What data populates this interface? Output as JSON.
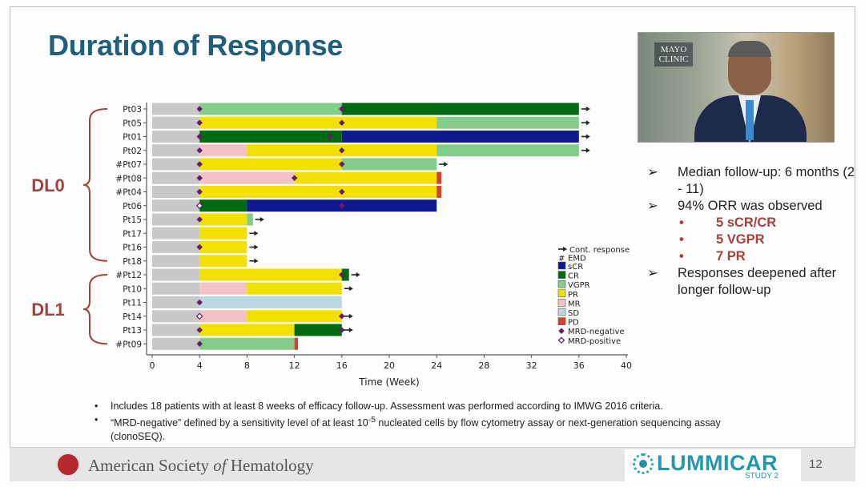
{
  "slide": {
    "title": "Duration of Response",
    "page_number": "12"
  },
  "webcam": {
    "logo_text": "MAYO CLINIC"
  },
  "summary": {
    "bullets": [
      {
        "marker": "➢",
        "text": "Median follow-up: 6 months (2 - 11)"
      },
      {
        "marker": "➢",
        "text": "94% ORR was observed"
      }
    ],
    "sub_bullets": [
      {
        "marker": "•",
        "text": "5 sCR/CR"
      },
      {
        "marker": "•",
        "text": "5 VGPR"
      },
      {
        "marker": "•",
        "text": "7 PR"
      }
    ],
    "last_bullet": {
      "marker": "➢",
      "text": "Responses deepened after longer follow-up"
    }
  },
  "notes": [
    {
      "marker": "•",
      "text": "Includes 18 patients with at least 8 weeks of efficacy follow-up. Assessment was performed according to IMWG 2016 criteria."
    },
    {
      "marker": "•",
      "pre": "“MRD-negative” defined by a sensitivity level of at least 10",
      "sup": "-5",
      "post": " nucleated cells by flow cytometry assay or next-generation sequencing assay (clonoSEQ)."
    }
  ],
  "footer": {
    "society_pre": "American Society ",
    "society_of": "of",
    "society_post": " Hematology",
    "brand": "LUMMICAR",
    "brand_sub": "STUDY 2"
  },
  "chart_data": {
    "type": "swimmer",
    "xlabel": "Time (Week)",
    "xlim": [
      0,
      40
    ],
    "xticks": [
      0,
      4,
      8,
      12,
      16,
      20,
      24,
      28,
      32,
      36,
      40
    ],
    "grid": false,
    "legend_placement": "right",
    "colors": {
      "baseline": "#c8c8c8",
      "sCR": "#101a8e",
      "CR": "#006a10",
      "VGPR": "#84cc8c",
      "PR": "#f2e000",
      "MR": "#f4c2c6",
      "SD": "#b9d8e4",
      "PD": "#d8402e",
      "MRD": "#6a1a6a"
    },
    "legend": [
      {
        "key": "cont",
        "label": "Cont. response",
        "symbol": "arrow"
      },
      {
        "key": "emd",
        "label": "EMD",
        "symbol": "#"
      },
      {
        "key": "sCR",
        "label": "sCR",
        "symbol": "box"
      },
      {
        "key": "CR",
        "label": "CR",
        "symbol": "box"
      },
      {
        "key": "VGPR",
        "label": "VGPR",
        "symbol": "box"
      },
      {
        "key": "PR",
        "label": "PR",
        "symbol": "box"
      },
      {
        "key": "MR",
        "label": "MR",
        "symbol": "box"
      },
      {
        "key": "SD",
        "label": "SD",
        "symbol": "box"
      },
      {
        "key": "PD",
        "label": "PD",
        "symbol": "box"
      },
      {
        "key": "mrdneg",
        "label": "MRD-negative",
        "symbol": "filled-diamond"
      },
      {
        "key": "mrdpos",
        "label": "MRD-positive",
        "symbol": "open-diamond"
      }
    ],
    "groups": [
      {
        "label": "DL0",
        "patients": [
          "Pt03",
          "Pt05",
          "Pt01",
          "Pt02",
          "#Pt07",
          "#Pt08",
          "#Pt04",
          "Pt06",
          "Pt15",
          "Pt17",
          "Pt16",
          "Pt18"
        ]
      },
      {
        "label": "DL1",
        "patients": [
          "#Pt12",
          "Pt10",
          "Pt11",
          "Pt14",
          "Pt13",
          "#Pt09"
        ]
      }
    ],
    "patients": [
      {
        "id": "Pt03",
        "segments": [
          [
            "baseline",
            0,
            4
          ],
          [
            "VGPR",
            4,
            16
          ],
          [
            "CR",
            16,
            36
          ]
        ],
        "continuing": true,
        "mrd_neg": [
          4,
          16
        ],
        "mrd_pos": []
      },
      {
        "id": "Pt05",
        "segments": [
          [
            "baseline",
            0,
            4
          ],
          [
            "PR",
            4,
            24
          ],
          [
            "VGPR",
            24,
            36
          ]
        ],
        "continuing": true,
        "mrd_neg": [
          4,
          16
        ],
        "mrd_pos": []
      },
      {
        "id": "Pt01",
        "segments": [
          [
            "baseline",
            0,
            4
          ],
          [
            "CR",
            4,
            16
          ],
          [
            "sCR",
            16,
            36
          ]
        ],
        "continuing": true,
        "mrd_neg": [
          4,
          15
        ],
        "mrd_pos": []
      },
      {
        "id": "Pt02",
        "segments": [
          [
            "baseline",
            0,
            4
          ],
          [
            "MR",
            4,
            8
          ],
          [
            "PR",
            8,
            24
          ],
          [
            "VGPR",
            24,
            36
          ]
        ],
        "continuing": true,
        "mrd_neg": [
          4,
          16
        ],
        "mrd_pos": []
      },
      {
        "id": "#Pt07",
        "segments": [
          [
            "baseline",
            0,
            4
          ],
          [
            "PR",
            4,
            16
          ],
          [
            "VGPR",
            16,
            24
          ]
        ],
        "continuing": true,
        "mrd_neg": [
          4,
          16
        ],
        "mrd_pos": []
      },
      {
        "id": "#Pt08",
        "segments": [
          [
            "baseline",
            0,
            4
          ],
          [
            "MR",
            4,
            12
          ],
          [
            "PR",
            12,
            24
          ],
          [
            "PD",
            24,
            24.4
          ]
        ],
        "continuing": false,
        "mrd_neg": [
          4,
          12
        ],
        "mrd_pos": []
      },
      {
        "id": "#Pt04",
        "segments": [
          [
            "baseline",
            0,
            4
          ],
          [
            "PR",
            4,
            24
          ],
          [
            "PD",
            24,
            24.4
          ]
        ],
        "continuing": false,
        "mrd_neg": [
          4,
          16
        ],
        "mrd_pos": []
      },
      {
        "id": "Pt06",
        "segments": [
          [
            "baseline",
            0,
            4
          ],
          [
            "CR",
            4,
            8
          ],
          [
            "sCR",
            8,
            24
          ]
        ],
        "continuing": false,
        "mrd_neg": [
          16
        ],
        "mrd_pos": [
          4
        ]
      },
      {
        "id": "Pt15",
        "segments": [
          [
            "baseline",
            0,
            4
          ],
          [
            "PR",
            4,
            8
          ],
          [
            "VGPR",
            8,
            8.5
          ]
        ],
        "continuing": true,
        "mrd_neg": [
          4
        ],
        "mrd_pos": []
      },
      {
        "id": "Pt17",
        "segments": [
          [
            "baseline",
            0,
            4
          ],
          [
            "PR",
            4,
            8
          ]
        ],
        "continuing": true,
        "mrd_neg": [],
        "mrd_pos": []
      },
      {
        "id": "Pt16",
        "segments": [
          [
            "baseline",
            0,
            4
          ],
          [
            "PR",
            4,
            8
          ]
        ],
        "continuing": true,
        "mrd_neg": [
          4
        ],
        "mrd_pos": []
      },
      {
        "id": "Pt18",
        "segments": [
          [
            "baseline",
            0,
            4
          ],
          [
            "PR",
            4,
            8
          ]
        ],
        "continuing": true,
        "mrd_neg": [],
        "mrd_pos": []
      },
      {
        "id": "#Pt12",
        "segments": [
          [
            "baseline",
            0,
            4
          ],
          [
            "PR",
            4,
            16
          ],
          [
            "CR",
            16,
            16.6
          ]
        ],
        "continuing": true,
        "mrd_neg": [
          16
        ],
        "mrd_pos": []
      },
      {
        "id": "Pt10",
        "segments": [
          [
            "baseline",
            0,
            4
          ],
          [
            "MR",
            4,
            8
          ],
          [
            "PR",
            8,
            16
          ]
        ],
        "continuing": true,
        "mrd_neg": [],
        "mrd_pos": []
      },
      {
        "id": "Pt11",
        "segments": [
          [
            "baseline",
            0,
            4
          ],
          [
            "SD",
            4,
            16
          ]
        ],
        "continuing": false,
        "mrd_neg": [
          4
        ],
        "mrd_pos": []
      },
      {
        "id": "Pt14",
        "segments": [
          [
            "baseline",
            0,
            4
          ],
          [
            "MR",
            4,
            8
          ],
          [
            "PR",
            8,
            16
          ]
        ],
        "continuing": true,
        "mrd_neg": [
          16
        ],
        "mrd_pos": [
          4
        ]
      },
      {
        "id": "Pt13",
        "segments": [
          [
            "baseline",
            0,
            4
          ],
          [
            "PR",
            4,
            12
          ],
          [
            "CR",
            12,
            16
          ]
        ],
        "continuing": true,
        "mrd_neg": [
          4,
          16
        ],
        "mrd_pos": []
      },
      {
        "id": "#Pt09",
        "segments": [
          [
            "baseline",
            0,
            4
          ],
          [
            "VGPR",
            4,
            12
          ],
          [
            "PD",
            12,
            12.3
          ]
        ],
        "continuing": false,
        "mrd_neg": [
          4
        ],
        "mrd_pos": []
      }
    ]
  }
}
